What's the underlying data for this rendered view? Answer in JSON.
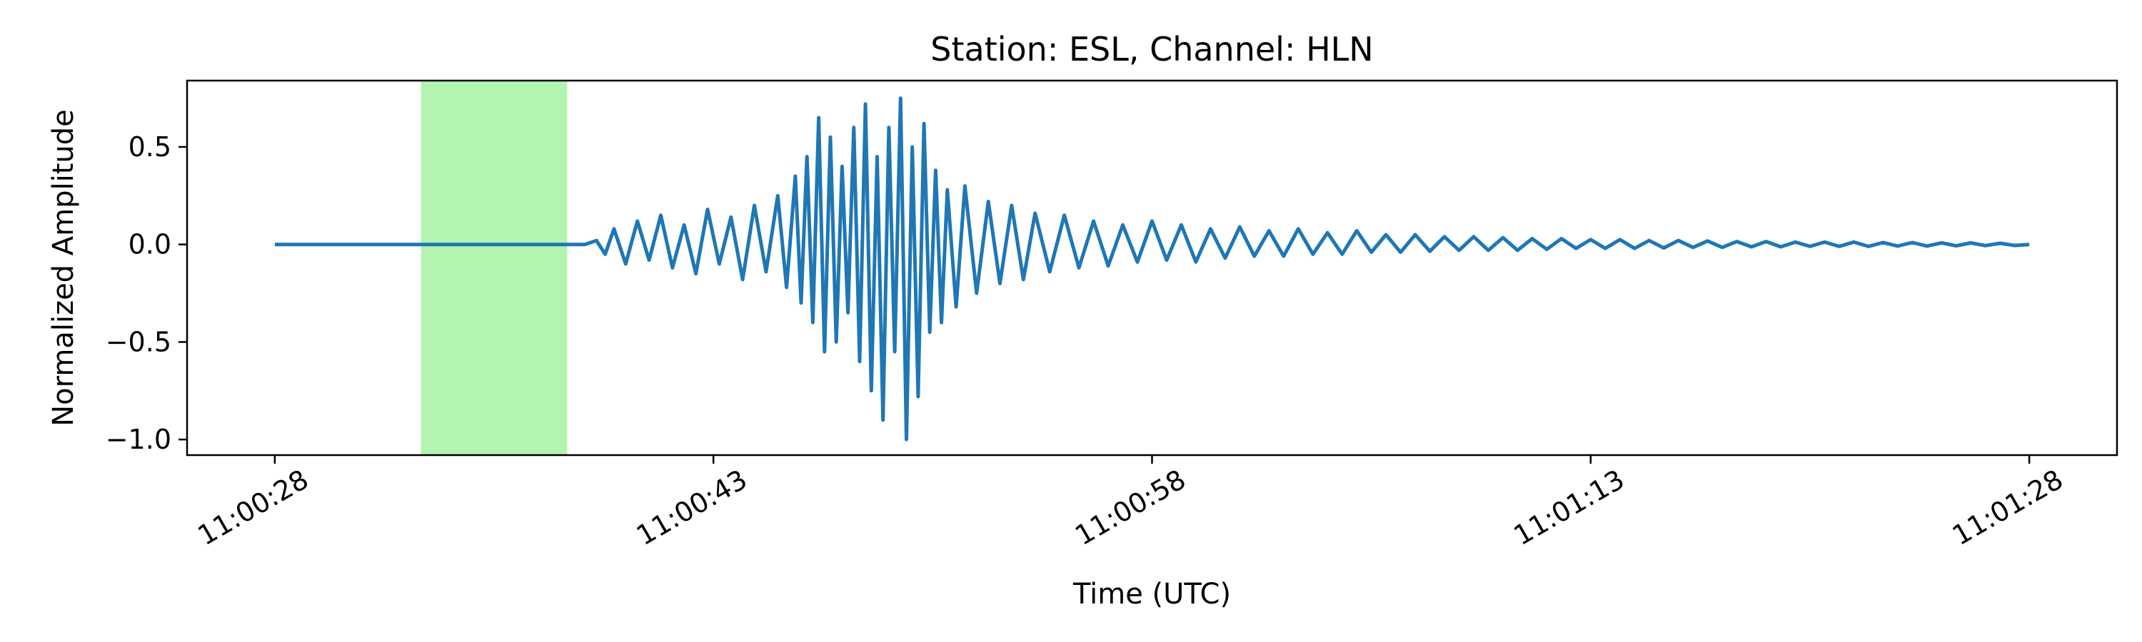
{
  "chart_data": {
    "type": "line",
    "title": "Station: ESL, Channel: HLN",
    "xlabel": "Time (UTC)",
    "ylabel": "Normalized Amplitude",
    "x_unit": "seconds past 11:00:00 UTC",
    "xlim": [
      25,
      91
    ],
    "ylim": [
      -1.08,
      0.84
    ],
    "x_ticks": [
      {
        "value": 28,
        "label": "11:00:28"
      },
      {
        "value": 43,
        "label": "11:00:43"
      },
      {
        "value": 58,
        "label": "11:00:58"
      },
      {
        "value": 73,
        "label": "11:01:13"
      },
      {
        "value": 88,
        "label": "11:01:28"
      }
    ],
    "y_ticks": [
      {
        "value": 0.5,
        "label": "0.5"
      },
      {
        "value": 0.0,
        "label": "0.0"
      },
      {
        "value": -0.5,
        "label": "−0.5"
      },
      {
        "value": -1.0,
        "label": "−1.0"
      }
    ],
    "highlight_span": {
      "x_start": 33.0,
      "x_end": 38.0,
      "color": "#b3f5b0"
    },
    "grid": false,
    "legend": "none",
    "series": [
      {
        "color": "#1f77b4",
        "x": [
          28.0,
          36.0,
          38.6,
          39.0,
          39.3,
          39.6,
          40.0,
          40.4,
          40.8,
          41.2,
          41.6,
          42.0,
          42.4,
          42.8,
          43.2,
          43.6,
          44.0,
          44.4,
          44.8,
          45.2,
          45.5,
          45.8,
          46.0,
          46.2,
          46.4,
          46.6,
          46.8,
          47.0,
          47.2,
          47.4,
          47.6,
          47.8,
          48.0,
          48.2,
          48.4,
          48.6,
          48.8,
          49.0,
          49.2,
          49.4,
          49.6,
          49.8,
          50.0,
          50.2,
          50.4,
          50.6,
          50.8,
          51.0,
          51.3,
          51.6,
          52.0,
          52.4,
          52.8,
          53.2,
          53.6,
          54.0,
          54.5,
          55.0,
          55.5,
          56.0,
          56.5,
          57.0,
          57.5,
          58.0,
          58.5,
          59.0,
          59.5,
          60.0,
          60.5,
          61.0,
          61.5,
          62.0,
          62.5,
          63.0,
          63.5,
          64.0,
          64.5,
          65.0,
          65.5,
          66.0,
          66.5,
          67.0,
          67.5,
          68.0,
          68.5,
          69.0,
          69.5,
          70.0,
          70.5,
          71.0,
          71.5,
          72.0,
          72.5,
          73.0,
          73.5,
          74.0,
          74.5,
          75.0,
          75.5,
          76.0,
          76.5,
          77.0,
          77.5,
          78.0,
          78.5,
          79.0,
          79.5,
          80.0,
          80.5,
          81.0,
          81.5,
          82.0,
          82.5,
          83.0,
          83.5,
          84.0,
          84.5,
          85.0,
          85.5,
          86.0,
          86.5,
          87.0,
          87.5,
          88.0
        ],
        "y": [
          0.0,
          0.0,
          0.0,
          0.02,
          -0.05,
          0.08,
          -0.1,
          0.12,
          -0.08,
          0.15,
          -0.12,
          0.1,
          -0.15,
          0.18,
          -0.1,
          0.14,
          -0.18,
          0.2,
          -0.14,
          0.25,
          -0.22,
          0.35,
          -0.3,
          0.45,
          -0.4,
          0.65,
          -0.55,
          0.55,
          -0.5,
          0.4,
          -0.35,
          0.6,
          -0.6,
          0.72,
          -0.75,
          0.45,
          -0.9,
          0.6,
          -0.55,
          0.75,
          -1.0,
          0.5,
          -0.78,
          0.62,
          -0.45,
          0.38,
          -0.4,
          0.28,
          -0.32,
          0.3,
          -0.25,
          0.22,
          -0.2,
          0.2,
          -0.18,
          0.16,
          -0.14,
          0.15,
          -0.12,
          0.12,
          -0.11,
          0.1,
          -0.09,
          0.12,
          -0.08,
          0.1,
          -0.09,
          0.08,
          -0.07,
          0.09,
          -0.06,
          0.07,
          -0.06,
          0.08,
          -0.05,
          0.06,
          -0.05,
          0.07,
          -0.04,
          0.05,
          -0.04,
          0.05,
          -0.035,
          0.04,
          -0.03,
          0.04,
          -0.03,
          0.035,
          -0.03,
          0.03,
          -0.025,
          0.03,
          -0.02,
          0.025,
          -0.02,
          0.025,
          -0.02,
          0.02,
          -0.018,
          0.02,
          -0.015,
          0.018,
          -0.015,
          0.015,
          -0.012,
          0.015,
          -0.012,
          0.012,
          -0.01,
          0.012,
          -0.01,
          0.012,
          -0.01,
          0.01,
          -0.008,
          0.01,
          -0.008,
          0.008,
          -0.007,
          0.008,
          -0.006,
          0.006,
          -0.005,
          0.0
        ]
      }
    ]
  }
}
